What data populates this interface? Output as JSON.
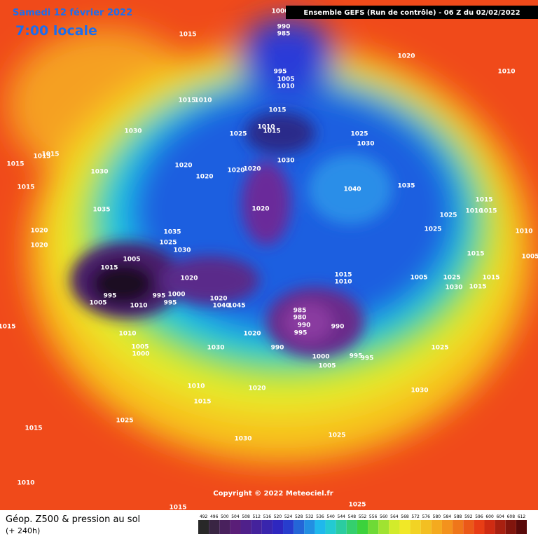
{
  "header": {
    "date": "Samedi 12 février 2022",
    "time": "7:00 locale",
    "run": "Ensemble GEFS  (Run de contrôle)  -  06 Z du 02/02/2022"
  },
  "footer": {
    "title": "Géop. Z500 & pression au sol",
    "lead": "(+ 240h)",
    "copyright": "Copyright © 2022 Meteociel.fr"
  },
  "colorbar": {
    "ticks": [
      492,
      496,
      500,
      504,
      508,
      512,
      516,
      520,
      524,
      528,
      532,
      536,
      540,
      544,
      548,
      552,
      556,
      560,
      564,
      568,
      572,
      576,
      580,
      584,
      588,
      592,
      596,
      600,
      604,
      608,
      612
    ]
  },
  "pressure_labels": [
    1000,
    990,
    985,
    995,
    1005,
    1010,
    1020,
    1010,
    1015,
    1015,
    1010,
    1030,
    1015,
    1015,
    1015,
    1030,
    1020,
    1020,
    1020,
    1020,
    1015,
    1010,
    1015,
    1025,
    1030,
    1025,
    1030,
    1040,
    1035,
    1020,
    1015,
    1035,
    1020,
    1020,
    1035,
    1025,
    1030,
    1015,
    1005,
    995,
    1005,
    1010,
    995,
    1000,
    995,
    1020,
    1020,
    1040,
    1045,
    1015,
    1010,
    1005,
    1025,
    1025,
    1015,
    1015,
    1010,
    1010,
    1005,
    1015,
    1025,
    1030,
    1015,
    1015,
    985,
    980,
    990,
    995,
    990,
    990,
    1000,
    1005,
    995,
    995,
    1020,
    1030,
    1025,
    1030,
    1010,
    1005,
    1000,
    1015,
    1010,
    1015,
    1020,
    1015,
    1025,
    1030,
    1025,
    1010,
    1015,
    1025
  ]
}
